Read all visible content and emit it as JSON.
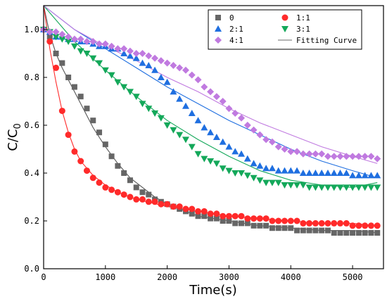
{
  "chart_data": {
    "type": "scatter",
    "xlabel": "Time(s)",
    "ylabel": "C/C",
    "ylabel_subscript": "0",
    "xlim": [
      0,
      5500
    ],
    "ylim": [
      0.0,
      1.1
    ],
    "xticks": [
      0,
      1000,
      2000,
      3000,
      4000,
      5000
    ],
    "yticks": [
      0.0,
      0.2,
      0.4,
      0.6,
      0.8,
      1.0
    ],
    "xtick_labels": [
      "0",
      "1000",
      "2000",
      "3000",
      "4000",
      "5000"
    ],
    "ytick_labels": [
      "0.0",
      "0.2",
      "0.4",
      "0.6",
      "0.8",
      "1.0"
    ],
    "grid": false,
    "legend_position": "top-right",
    "legend": [
      {
        "label": "0",
        "marker": "square",
        "color": "#666666"
      },
      {
        "label": "1:1",
        "marker": "circle",
        "color": "#ff2a2a"
      },
      {
        "label": "2:1",
        "marker": "triangle-up",
        "color": "#1f6fe0"
      },
      {
        "label": "3:1",
        "marker": "triangle-down",
        "color": "#14a85a"
      },
      {
        "label": "4:1",
        "marker": "diamond",
        "color": "#c07ae0"
      },
      {
        "label": "Fitting Curve",
        "marker": "line",
        "color": "#888888"
      }
    ],
    "series": [
      {
        "name": "0",
        "color": "#666666",
        "marker": "square",
        "x": [
          0,
          100,
          200,
          300,
          400,
          500,
          600,
          700,
          800,
          900,
          1000,
          1100,
          1200,
          1300,
          1400,
          1500,
          1600,
          1700,
          1800,
          1900,
          2000,
          2100,
          2200,
          2300,
          2400,
          2500,
          2600,
          2700,
          2800,
          2900,
          3000,
          3100,
          3200,
          3300,
          3400,
          3500,
          3600,
          3700,
          3800,
          3900,
          4000,
          4100,
          4200,
          4300,
          4400,
          4500,
          4600,
          4700,
          4800,
          4900,
          5000,
          5100,
          5200,
          5300,
          5400
        ],
        "y": [
          1.0,
          0.97,
          0.9,
          0.86,
          0.8,
          0.76,
          0.72,
          0.67,
          0.62,
          0.57,
          0.52,
          0.47,
          0.43,
          0.4,
          0.37,
          0.34,
          0.32,
          0.31,
          0.29,
          0.28,
          0.27,
          0.26,
          0.25,
          0.24,
          0.23,
          0.22,
          0.22,
          0.21,
          0.21,
          0.2,
          0.2,
          0.19,
          0.19,
          0.19,
          0.18,
          0.18,
          0.18,
          0.17,
          0.17,
          0.17,
          0.17,
          0.16,
          0.16,
          0.16,
          0.16,
          0.16,
          0.16,
          0.15,
          0.15,
          0.15,
          0.15,
          0.15,
          0.15,
          0.15,
          0.15
        ]
      },
      {
        "name": "1:1",
        "color": "#ff2a2a",
        "marker": "circle",
        "x": [
          0,
          100,
          200,
          300,
          400,
          500,
          600,
          700,
          800,
          900,
          1000,
          1100,
          1200,
          1300,
          1400,
          1500,
          1600,
          1700,
          1800,
          1900,
          2000,
          2100,
          2200,
          2300,
          2400,
          2500,
          2600,
          2700,
          2800,
          2900,
          3000,
          3100,
          3200,
          3300,
          3400,
          3500,
          3600,
          3700,
          3800,
          3900,
          4000,
          4100,
          4200,
          4300,
          4400,
          4500,
          4600,
          4700,
          4800,
          4900,
          5000,
          5100,
          5200,
          5300,
          5400
        ],
        "y": [
          1.0,
          0.95,
          0.84,
          0.66,
          0.56,
          0.49,
          0.45,
          0.41,
          0.38,
          0.36,
          0.34,
          0.33,
          0.32,
          0.31,
          0.3,
          0.29,
          0.29,
          0.28,
          0.28,
          0.27,
          0.27,
          0.26,
          0.26,
          0.25,
          0.25,
          0.24,
          0.24,
          0.23,
          0.23,
          0.22,
          0.22,
          0.22,
          0.22,
          0.21,
          0.21,
          0.21,
          0.21,
          0.2,
          0.2,
          0.2,
          0.2,
          0.2,
          0.19,
          0.19,
          0.19,
          0.19,
          0.19,
          0.19,
          0.19,
          0.19,
          0.18,
          0.18,
          0.18,
          0.18,
          0.18
        ]
      },
      {
        "name": "2:1",
        "color": "#1f6fe0",
        "marker": "triangle-up",
        "x": [
          0,
          100,
          200,
          300,
          400,
          500,
          600,
          700,
          800,
          900,
          1000,
          1100,
          1200,
          1300,
          1400,
          1500,
          1600,
          1700,
          1800,
          1900,
          2000,
          2100,
          2200,
          2300,
          2400,
          2500,
          2600,
          2700,
          2800,
          2900,
          3000,
          3100,
          3200,
          3300,
          3400,
          3500,
          3600,
          3700,
          3800,
          3900,
          4000,
          4100,
          4200,
          4300,
          4400,
          4500,
          4600,
          4700,
          4800,
          4900,
          5000,
          5100,
          5200,
          5300,
          5400
        ],
        "y": [
          1.0,
          0.99,
          0.97,
          0.97,
          0.96,
          0.96,
          0.95,
          0.95,
          0.94,
          0.93,
          0.93,
          0.92,
          0.92,
          0.9,
          0.89,
          0.88,
          0.86,
          0.85,
          0.83,
          0.8,
          0.78,
          0.74,
          0.71,
          0.68,
          0.65,
          0.62,
          0.59,
          0.57,
          0.55,
          0.53,
          0.51,
          0.49,
          0.48,
          0.46,
          0.44,
          0.43,
          0.42,
          0.42,
          0.41,
          0.41,
          0.41,
          0.41,
          0.4,
          0.4,
          0.4,
          0.4,
          0.4,
          0.4,
          0.4,
          0.4,
          0.39,
          0.39,
          0.39,
          0.39,
          0.39
        ]
      },
      {
        "name": "3:1",
        "color": "#14a85a",
        "marker": "triangle-down",
        "x": [
          0,
          100,
          200,
          300,
          400,
          500,
          600,
          700,
          800,
          900,
          1000,
          1100,
          1200,
          1300,
          1400,
          1500,
          1600,
          1700,
          1800,
          1900,
          2000,
          2100,
          2200,
          2300,
          2400,
          2500,
          2600,
          2700,
          2800,
          2900,
          3000,
          3100,
          3200,
          3300,
          3400,
          3500,
          3600,
          3700,
          3800,
          3900,
          4000,
          4100,
          4200,
          4300,
          4400,
          4500,
          4600,
          4700,
          4800,
          4900,
          5000,
          5100,
          5200,
          5300,
          5400
        ],
        "y": [
          1.0,
          0.99,
          0.97,
          0.96,
          0.95,
          0.93,
          0.91,
          0.9,
          0.88,
          0.86,
          0.83,
          0.81,
          0.78,
          0.76,
          0.74,
          0.72,
          0.69,
          0.67,
          0.65,
          0.63,
          0.6,
          0.58,
          0.56,
          0.54,
          0.51,
          0.48,
          0.46,
          0.45,
          0.44,
          0.42,
          0.41,
          0.4,
          0.4,
          0.39,
          0.38,
          0.37,
          0.36,
          0.36,
          0.36,
          0.35,
          0.35,
          0.35,
          0.35,
          0.34,
          0.34,
          0.34,
          0.34,
          0.34,
          0.34,
          0.34,
          0.34,
          0.34,
          0.34,
          0.34,
          0.34
        ]
      },
      {
        "name": "4:1",
        "color": "#c07ae0",
        "marker": "diamond",
        "x": [
          0,
          100,
          200,
          300,
          400,
          500,
          600,
          700,
          800,
          900,
          1000,
          1100,
          1200,
          1300,
          1400,
          1500,
          1600,
          1700,
          1800,
          1900,
          2000,
          2100,
          2200,
          2300,
          2400,
          2500,
          2600,
          2700,
          2800,
          2900,
          3000,
          3100,
          3200,
          3300,
          3400,
          3500,
          3600,
          3700,
          3800,
          3900,
          4000,
          4100,
          4200,
          4300,
          4400,
          4500,
          4600,
          4700,
          4800,
          4900,
          5000,
          5100,
          5200,
          5300,
          5400
        ],
        "y": [
          1.0,
          0.99,
          0.99,
          0.98,
          0.97,
          0.96,
          0.96,
          0.95,
          0.95,
          0.94,
          0.94,
          0.93,
          0.92,
          0.92,
          0.91,
          0.9,
          0.9,
          0.89,
          0.88,
          0.87,
          0.86,
          0.85,
          0.84,
          0.83,
          0.81,
          0.79,
          0.76,
          0.74,
          0.72,
          0.7,
          0.67,
          0.65,
          0.63,
          0.6,
          0.58,
          0.56,
          0.54,
          0.53,
          0.51,
          0.5,
          0.49,
          0.49,
          0.48,
          0.48,
          0.48,
          0.48,
          0.47,
          0.47,
          0.47,
          0.47,
          0.47,
          0.47,
          0.47,
          0.47,
          0.46
        ]
      }
    ],
    "fitting_curves": [
      {
        "for": "0",
        "color": "#555555",
        "x": [
          0,
          100,
          200,
          300,
          400,
          500,
          600,
          700,
          800,
          900,
          1000,
          1200,
          1400,
          1600,
          1800,
          2000,
          2500,
          3000,
          3500,
          4000,
          4500,
          5000,
          5400
        ],
        "y": [
          1.1,
          0.98,
          0.9,
          0.84,
          0.79,
          0.74,
          0.69,
          0.64,
          0.59,
          0.55,
          0.51,
          0.44,
          0.38,
          0.34,
          0.3,
          0.27,
          0.22,
          0.2,
          0.18,
          0.17,
          0.16,
          0.16,
          0.15
        ]
      },
      {
        "for": "1:1",
        "color": "#ff2a2a",
        "x": [
          0,
          100,
          200,
          300,
          400,
          500,
          600,
          800,
          1000,
          1200,
          1500,
          2000,
          2500,
          3000,
          3500,
          4000,
          4500,
          5000,
          5400
        ],
        "y": [
          1.1,
          0.92,
          0.78,
          0.66,
          0.57,
          0.5,
          0.45,
          0.39,
          0.35,
          0.32,
          0.29,
          0.26,
          0.24,
          0.22,
          0.21,
          0.2,
          0.19,
          0.19,
          0.18
        ]
      },
      {
        "for": "2:1",
        "color": "#1f6fe0",
        "x": [
          0,
          500,
          1000,
          1500,
          2000,
          2500,
          3000,
          3500,
          4000,
          4500,
          5000,
          5400
        ],
        "y": [
          1.1,
          1.0,
          0.92,
          0.84,
          0.76,
          0.69,
          0.62,
          0.56,
          0.5,
          0.45,
          0.41,
          0.38
        ]
      },
      {
        "for": "3:1",
        "color": "#14a85a",
        "x": [
          0,
          500,
          1000,
          1500,
          2000,
          2500,
          3000,
          3500,
          4000,
          4500,
          5000,
          5400
        ],
        "y": [
          1.1,
          0.95,
          0.83,
          0.72,
          0.62,
          0.54,
          0.47,
          0.41,
          0.37,
          0.35,
          0.34,
          0.36
        ]
      },
      {
        "for": "4:1",
        "color": "#c07ae0",
        "x": [
          0,
          500,
          1000,
          1500,
          2000,
          2500,
          3000,
          3500,
          4000,
          4500,
          5000,
          5400
        ],
        "y": [
          1.1,
          1.0,
          0.93,
          0.87,
          0.8,
          0.74,
          0.67,
          0.61,
          0.56,
          0.51,
          0.47,
          0.44
        ]
      }
    ]
  }
}
